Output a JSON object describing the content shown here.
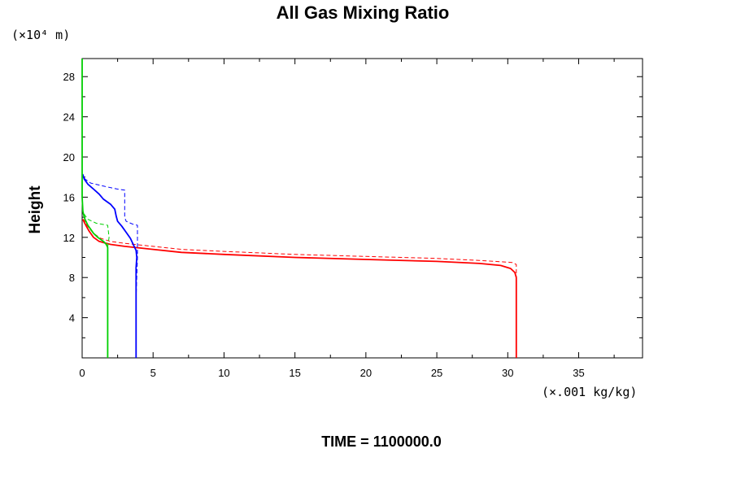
{
  "chart_data": {
    "type": "line",
    "title": "All Gas Mixing Ratio",
    "ylabel": "Height",
    "y_unit_label": "(×10⁴ m)",
    "x_unit_label": "(×.001 kg/kg)",
    "time_label": "TIME = 1100000.0",
    "xlim": [
      0,
      39.5
    ],
    "ylim": [
      0,
      29.8
    ],
    "x_ticks": [
      0,
      5,
      10,
      15,
      20,
      25,
      30,
      35
    ],
    "y_ticks": [
      4,
      8,
      12,
      16,
      20,
      24,
      28
    ],
    "grid": false,
    "legend": "none",
    "series": [
      {
        "color": "#ff0000",
        "dash": "solid",
        "points": [
          [
            30.6,
            0
          ],
          [
            30.6,
            3
          ],
          [
            30.6,
            6
          ],
          [
            30.6,
            8
          ],
          [
            30.5,
            8.5
          ],
          [
            30.2,
            8.9
          ],
          [
            29.5,
            9.2
          ],
          [
            28,
            9.4
          ],
          [
            25,
            9.6
          ],
          [
            20,
            9.8
          ],
          [
            15,
            10.0
          ],
          [
            10,
            10.3
          ],
          [
            7,
            10.5
          ],
          [
            5,
            10.8
          ],
          [
            3,
            11.1
          ],
          [
            2,
            11.3
          ],
          [
            1.2,
            11.6
          ],
          [
            0.8,
            12
          ],
          [
            0.5,
            12.6
          ],
          [
            0.3,
            13.1
          ],
          [
            0.15,
            13.5
          ],
          [
            0.05,
            13.8
          ]
        ]
      },
      {
        "color": "#ff0000",
        "dash": "dashed",
        "points": [
          [
            30.6,
            0
          ],
          [
            30.6,
            5
          ],
          [
            30.6,
            9.3
          ],
          [
            30.3,
            9.5
          ],
          [
            28,
            9.7
          ],
          [
            25,
            9.9
          ],
          [
            20,
            10.1
          ],
          [
            15,
            10.3
          ],
          [
            10,
            10.6
          ],
          [
            7,
            10.8
          ],
          [
            5,
            11.1
          ],
          [
            3,
            11.4
          ],
          [
            2,
            11.6
          ],
          [
            1.3,
            11.9
          ],
          [
            0.8,
            12.4
          ],
          [
            0.5,
            12.9
          ],
          [
            0.3,
            13.3
          ],
          [
            0.1,
            13.8
          ]
        ]
      },
      {
        "color": "#0000ff",
        "dash": "solid",
        "points": [
          [
            3.8,
            0
          ],
          [
            3.8,
            4
          ],
          [
            3.8,
            8
          ],
          [
            3.8,
            9
          ],
          [
            3.85,
            10
          ],
          [
            3.8,
            10.7
          ],
          [
            3.6,
            11.3
          ],
          [
            3.4,
            11.9
          ],
          [
            3.1,
            12.5
          ],
          [
            2.8,
            13.1
          ],
          [
            2.5,
            13.6
          ],
          [
            2.4,
            14.1
          ],
          [
            2.3,
            14.8
          ],
          [
            2.0,
            15.3
          ],
          [
            1.5,
            15.8
          ],
          [
            1.2,
            16.3
          ],
          [
            0.8,
            16.8
          ],
          [
            0.4,
            17.3
          ],
          [
            0.15,
            17.8
          ],
          [
            0.05,
            18.2
          ]
        ]
      },
      {
        "color": "#0000ff",
        "dash": "dashed",
        "points": [
          [
            3.8,
            0
          ],
          [
            3.8,
            6
          ],
          [
            3.9,
            10
          ],
          [
            3.9,
            13.2
          ],
          [
            3.6,
            13.3
          ],
          [
            3.1,
            13.6
          ],
          [
            3.0,
            14
          ],
          [
            3.0,
            16.7
          ],
          [
            2.5,
            16.8
          ],
          [
            1.5,
            17.1
          ],
          [
            0.6,
            17.4
          ],
          [
            0.2,
            17.8
          ],
          [
            0.05,
            18.3
          ]
        ]
      },
      {
        "color": "#00d000",
        "dash": "solid",
        "points": [
          [
            1.8,
            0
          ],
          [
            1.8,
            4
          ],
          [
            1.8,
            8
          ],
          [
            1.8,
            10
          ],
          [
            1.8,
            11
          ],
          [
            1.7,
            11.3
          ],
          [
            1.5,
            11.6
          ],
          [
            1.1,
            12
          ],
          [
            0.8,
            12.4
          ],
          [
            0.6,
            12.8
          ],
          [
            0.4,
            13.2
          ],
          [
            0.2,
            13.8
          ],
          [
            0.1,
            14.3
          ],
          [
            0.05,
            14.6
          ],
          [
            0,
            16
          ],
          [
            0,
            20
          ],
          [
            0,
            24
          ],
          [
            0,
            28
          ],
          [
            0,
            29.8
          ]
        ]
      },
      {
        "color": "#00d000",
        "dash": "dashed",
        "points": [
          [
            1.8,
            0
          ],
          [
            1.8,
            8
          ],
          [
            1.8,
            11
          ],
          [
            1.9,
            12
          ],
          [
            1.8,
            13.2
          ],
          [
            1.0,
            13.4
          ],
          [
            0.4,
            13.8
          ],
          [
            0.1,
            14.4
          ],
          [
            0.02,
            14.8
          ]
        ]
      }
    ]
  }
}
